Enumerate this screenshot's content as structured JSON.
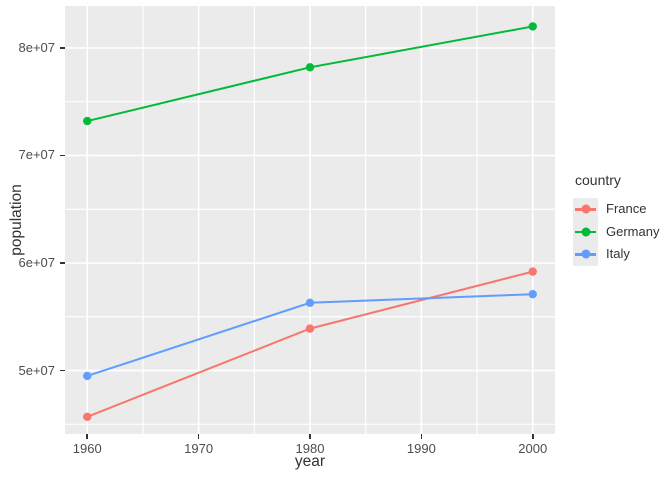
{
  "chart_data": {
    "type": "line",
    "title": "",
    "xlabel": "year",
    "ylabel": "population",
    "x": [
      1960,
      1980,
      2000
    ],
    "xlim": [
      1958,
      2002
    ],
    "ylim": [
      44100000,
      83900000
    ],
    "x_major_ticks": [
      1960,
      1970,
      1980,
      1990,
      2000
    ],
    "x_minor_ticks": [
      1965,
      1975,
      1985,
      1995
    ],
    "x_tick_labels": [
      "1960",
      "1970",
      "1980",
      "1990",
      "2000"
    ],
    "y_major_ticks": [
      50000000,
      60000000,
      70000000,
      80000000
    ],
    "y_minor_ticks": [
      45000000,
      55000000,
      65000000,
      75000000
    ],
    "y_tick_labels": [
      "5e+07",
      "6e+07",
      "7e+07",
      "8e+07"
    ],
    "grid": true,
    "legend": {
      "title": "country",
      "position": "right"
    },
    "series": [
      {
        "name": "France",
        "color": "#F8766D",
        "values": [
          45700000,
          53900000,
          59200000
        ]
      },
      {
        "name": "Germany",
        "color": "#00BA38",
        "values": [
          73200000,
          78200000,
          82000000
        ]
      },
      {
        "name": "Italy",
        "color": "#619CFF",
        "values": [
          49500000,
          56300000,
          57100000
        ]
      }
    ]
  },
  "style": {
    "background": "#FFFFFF",
    "panel_bg": "#EBEBEB",
    "grid_color": "#FFFFFF",
    "tick_color": "#333333",
    "tick_label_color": "#4D4D4D",
    "axis_title_color": "#333333",
    "legend_key_bg": "#EBEBEB"
  }
}
